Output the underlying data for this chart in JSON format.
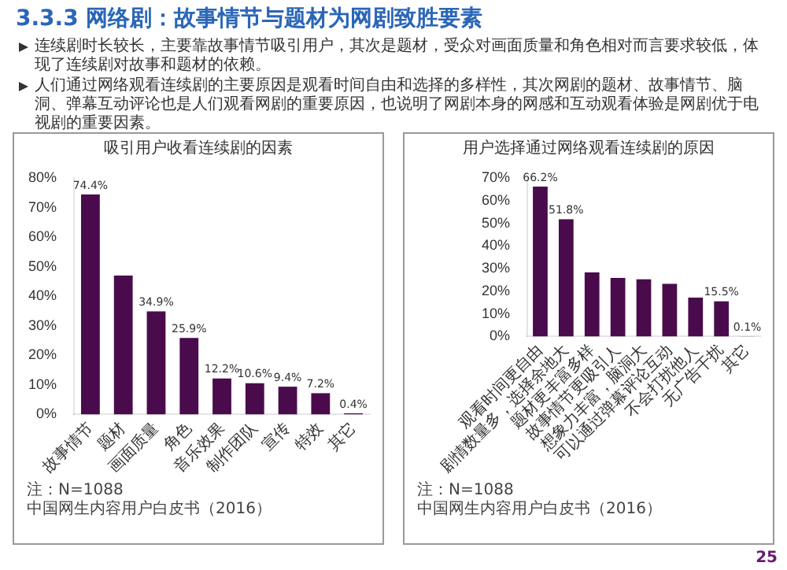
{
  "chart_data": [
    {
      "type": "bar",
      "title": "吸引用户收看连续剧的因素",
      "categories": [
        "故事情节",
        "题材",
        "画面质量",
        "角色",
        "音乐效果",
        "制作团队",
        "宣传",
        "特效",
        "其它"
      ],
      "values": [
        74.4,
        47,
        34.9,
        25.9,
        12.2,
        10.6,
        9.4,
        7.2,
        0.4
      ],
      "value_labels": [
        "74.4%",
        null,
        "34.9%",
        "25.9%",
        "12.2%",
        "10.6%",
        "9.4%",
        "7.2%",
        "0.4%"
      ],
      "color": "#4a0b4c",
      "ylim": [
        0,
        80
      ],
      "yticks": [
        {
          "value": 0,
          "label": "0%"
        },
        {
          "value": 10,
          "label": "10%"
        },
        {
          "value": 20,
          "label": "20%"
        },
        {
          "value": 30,
          "label": "30%"
        },
        {
          "value": 40,
          "label": "40%"
        },
        {
          "value": 50,
          "label": "50%"
        },
        {
          "value": 60,
          "label": "60%"
        },
        {
          "value": 70,
          "label": "70%"
        },
        {
          "value": 80,
          "label": "80%"
        }
      ],
      "grid": false,
      "legend": false,
      "annotations": [
        "3.3.3 网络剧：故事情节与题材为网剧致胜要素",
        "连续剧时长较长，主要靠故事情节吸引用户，其次是题材，受众对画面质量和角色相对而言要求较低，体现了连续剧对故事和题材的依赖。",
        "人们通过网络观看连续剧的主要原因是观看时间自由和选择的多样性，其次网剧的题材、故事情节、脑洞、弹幕互动评论也是人们观看网剧的重要原因，也说明了网剧本身的网感和互动观看体验是网剧优于电视剧的重要因素。",
        "注：N=1088",
        "中国网生内容用户白皮书（2016）"
      ]
    },
    {
      "type": "bar",
      "title": "用户选择通过网络观看连续剧的原因",
      "categories": [
        "观看时间更自由",
        "剧情数量多，选择余地大",
        "题材更丰富多样",
        "故事情节更吸引人",
        "想象力丰富，脑洞大",
        "可以通过弹幕评论互动",
        "不会打扰他人",
        "无广告干扰",
        "其它"
      ],
      "values": [
        66.2,
        51.8,
        28.3,
        25.9,
        25.3,
        23.3,
        17.2,
        15.5,
        0.1
      ],
      "value_labels": [
        "66.2%",
        "51.8%",
        null,
        null,
        null,
        null,
        null,
        "15.5%",
        "0.1%"
      ],
      "color": "#4a0b4c",
      "ylim": [
        0,
        70
      ],
      "yticks": [
        {
          "value": 0,
          "label": "0%"
        },
        {
          "value": 10,
          "label": "10%"
        },
        {
          "value": 20,
          "label": "20%"
        },
        {
          "value": 30,
          "label": "30%"
        },
        {
          "value": 40,
          "label": "40%"
        },
        {
          "value": 50,
          "label": "50%"
        },
        {
          "value": 60,
          "label": "60%"
        },
        {
          "value": 70,
          "label": "70%"
        }
      ],
      "grid": false,
      "legend": false,
      "annotations": [
        "注：N=1088",
        "中国网生内容用户白皮书（2016）",
        "25"
      ]
    }
  ]
}
